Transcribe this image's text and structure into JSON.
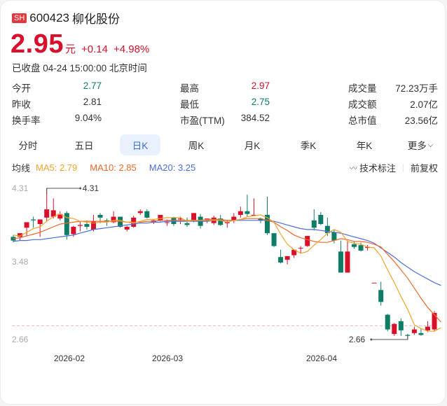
{
  "header": {
    "exchange_badge": "SH",
    "code": "600423",
    "name": "柳化股份",
    "price": "2.95",
    "unit": "元",
    "change": "+0.14",
    "change_pct": "+4.98%",
    "status": "已收盘 04-24 15:00:00 北京时间"
  },
  "stats": [
    [
      {
        "label": "今开",
        "value": "2.77",
        "color": "green"
      },
      {
        "label": "最高",
        "value": "2.97",
        "color": "red"
      },
      {
        "label": "成交量",
        "value": "72.23万手",
        "color": ""
      }
    ],
    [
      {
        "label": "昨收",
        "value": "2.81",
        "color": ""
      },
      {
        "label": "最低",
        "value": "2.75",
        "color": "green"
      },
      {
        "label": "成交额",
        "value": "2.07亿",
        "color": ""
      }
    ],
    [
      {
        "label": "换手率",
        "value": "9.04%",
        "color": ""
      },
      {
        "label": "市盈(TTM)",
        "value": "384.52",
        "color": ""
      },
      {
        "label": "总市值",
        "value": "23.56亿",
        "color": ""
      }
    ]
  ],
  "tabs": [
    {
      "label": "分时",
      "active": false
    },
    {
      "label": "五日",
      "active": false
    },
    {
      "label": "日K",
      "active": true
    },
    {
      "label": "周K",
      "active": false
    },
    {
      "label": "月K",
      "active": false
    },
    {
      "label": "季K",
      "active": false
    },
    {
      "label": "年K",
      "active": false
    },
    {
      "label": "更多",
      "active": false,
      "dropdown": true
    }
  ],
  "ma_bar": {
    "label": "均线",
    "ma5": "MA5: 2.79",
    "ma10": "MA10: 2.85",
    "ma20": "MA20: 3.25",
    "tech_label": "技术标注",
    "adjust_label": "前复权",
    "eye_icon": "eye-closed-icon"
  },
  "colors": {
    "up": "#d9102a",
    "down": "#0f7d65",
    "ma5": "#f0a52a",
    "ma10": "#ee6a2a",
    "ma20": "#4a6fd8",
    "prev_close_line": "#f0b4bf"
  },
  "chart_data": {
    "type": "candlestick",
    "title": "柳化股份 600423 日K",
    "y_ticks": [
      "4.31",
      "3.48",
      "2.66"
    ],
    "ylim": [
      2.66,
      4.31
    ],
    "x_ticks": [
      "2026-02",
      "2026-03",
      "2026-04"
    ],
    "max_annotation": "4.31",
    "min_annotation": "2.66",
    "prev_close": 2.81,
    "ma_values": {
      "MA5": 2.79,
      "MA10": 2.85,
      "MA20": 3.25
    },
    "candles": [
      {
        "o": 3.78,
        "h": 3.8,
        "l": 3.72,
        "c": 3.74
      },
      {
        "o": 3.78,
        "h": 3.82,
        "l": 3.74,
        "c": 3.82
      },
      {
        "o": 3.88,
        "h": 3.92,
        "l": 3.79,
        "c": 3.94
      },
      {
        "o": 3.97,
        "h": 4.0,
        "l": 3.88,
        "c": 3.96
      },
      {
        "o": 3.92,
        "h": 3.97,
        "l": 3.78,
        "c": 3.97
      },
      {
        "o": 3.99,
        "h": 4.31,
        "l": 3.95,
        "c": 4.08
      },
      {
        "o": 4.0,
        "h": 4.2,
        "l": 3.98,
        "c": 4.07
      },
      {
        "o": 3.98,
        "h": 4.06,
        "l": 3.96,
        "c": 4.03
      },
      {
        "o": 4.04,
        "h": 4.06,
        "l": 3.75,
        "c": 3.8
      },
      {
        "o": 3.81,
        "h": 3.9,
        "l": 3.78,
        "c": 3.89
      },
      {
        "o": 3.9,
        "h": 3.95,
        "l": 3.84,
        "c": 3.91
      },
      {
        "o": 3.92,
        "h": 3.96,
        "l": 3.86,
        "c": 3.89
      },
      {
        "o": 3.86,
        "h": 4.02,
        "l": 3.84,
        "c": 3.95
      },
      {
        "o": 4.02,
        "h": 4.04,
        "l": 3.93,
        "c": 3.99
      },
      {
        "o": 3.96,
        "h": 3.98,
        "l": 3.9,
        "c": 3.95
      },
      {
        "o": 3.94,
        "h": 4.06,
        "l": 3.93,
        "c": 4.0
      },
      {
        "o": 4.0,
        "h": 4.0,
        "l": 3.88,
        "c": 3.89
      },
      {
        "o": 3.86,
        "h": 3.9,
        "l": 3.84,
        "c": 3.89
      },
      {
        "o": 3.89,
        "h": 4.01,
        "l": 3.88,
        "c": 3.99
      },
      {
        "o": 4.04,
        "h": 4.08,
        "l": 4.02,
        "c": 4.06
      },
      {
        "o": 4.06,
        "h": 4.08,
        "l": 3.98,
        "c": 3.99
      },
      {
        "o": 3.94,
        "h": 3.97,
        "l": 3.92,
        "c": 3.96
      },
      {
        "o": 3.96,
        "h": 4.02,
        "l": 3.95,
        "c": 4.02
      },
      {
        "o": 3.94,
        "h": 3.97,
        "l": 3.9,
        "c": 3.94
      },
      {
        "o": 3.99,
        "h": 4.0,
        "l": 3.9,
        "c": 3.92
      },
      {
        "o": 3.97,
        "h": 4.0,
        "l": 3.92,
        "c": 3.98
      },
      {
        "o": 3.93,
        "h": 3.99,
        "l": 3.89,
        "c": 3.91
      },
      {
        "o": 3.96,
        "h": 4.04,
        "l": 3.94,
        "c": 4.04
      },
      {
        "o": 4.0,
        "h": 4.03,
        "l": 3.87,
        "c": 3.9
      },
      {
        "o": 3.95,
        "h": 3.98,
        "l": 3.93,
        "c": 3.98
      },
      {
        "o": 3.93,
        "h": 4.01,
        "l": 3.91,
        "c": 3.99
      },
      {
        "o": 3.98,
        "h": 4.02,
        "l": 3.9,
        "c": 3.91
      },
      {
        "o": 3.93,
        "h": 3.96,
        "l": 3.88,
        "c": 3.94
      },
      {
        "o": 3.96,
        "h": 4.04,
        "l": 3.93,
        "c": 4.0
      },
      {
        "o": 4.02,
        "h": 4.11,
        "l": 3.99,
        "c": 4.06
      },
      {
        "o": 4.06,
        "h": 4.24,
        "l": 4.0,
        "c": 4.03
      },
      {
        "o": 4.02,
        "h": 4.2,
        "l": 4.01,
        "c": 4.02
      },
      {
        "o": 3.98,
        "h": 3.99,
        "l": 3.93,
        "c": 3.96
      },
      {
        "o": 4.02,
        "h": 4.22,
        "l": 3.8,
        "c": 3.82
      },
      {
        "o": 3.82,
        "h": 3.82,
        "l": 3.67,
        "c": 3.68
      },
      {
        "o": 3.56,
        "h": 3.64,
        "l": 3.49,
        "c": 3.5
      },
      {
        "o": 3.53,
        "h": 3.56,
        "l": 3.48,
        "c": 3.57
      },
      {
        "o": 3.58,
        "h": 3.63,
        "l": 3.55,
        "c": 3.64
      },
      {
        "o": 3.66,
        "h": 3.68,
        "l": 3.6,
        "c": 3.66
      },
      {
        "o": 3.68,
        "h": 3.73,
        "l": 3.67,
        "c": 3.79
      },
      {
        "o": 3.96,
        "h": 4.08,
        "l": 3.85,
        "c": 3.88
      },
      {
        "o": 4.02,
        "h": 4.05,
        "l": 3.91,
        "c": 3.92
      },
      {
        "o": 3.9,
        "h": 3.99,
        "l": 3.79,
        "c": 3.82
      },
      {
        "o": 3.83,
        "h": 3.86,
        "l": 3.71,
        "c": 3.74
      },
      {
        "o": 3.62,
        "h": 3.74,
        "l": 3.49,
        "c": 3.39
      },
      {
        "o": 3.39,
        "h": 3.74,
        "l": 3.39,
        "c": 3.62
      },
      {
        "o": 3.7,
        "h": 3.73,
        "l": 3.65,
        "c": 3.67
      },
      {
        "o": 3.69,
        "h": 3.72,
        "l": 3.62,
        "c": 3.63
      },
      {
        "o": 3.66,
        "h": 3.69,
        "l": 3.63,
        "c": 3.67
      },
      {
        "o": 3.28,
        "h": 3.28,
        "l": 3.28,
        "c": 3.28
      },
      {
        "o": 3.2,
        "h": 3.29,
        "l": 3.03,
        "c": 3.07
      },
      {
        "o": 2.93,
        "h": 2.94,
        "l": 2.75,
        "c": 2.77
      },
      {
        "o": 2.72,
        "h": 2.84,
        "l": 2.7,
        "c": 2.83
      },
      {
        "o": 2.86,
        "h": 2.89,
        "l": 2.7,
        "c": 2.76
      },
      {
        "o": 2.71,
        "h": 2.72,
        "l": 2.66,
        "c": 2.7
      },
      {
        "o": 2.73,
        "h": 2.8,
        "l": 2.71,
        "c": 2.77
      },
      {
        "o": 2.73,
        "h": 2.78,
        "l": 2.7,
        "c": 2.71
      },
      {
        "o": 2.76,
        "h": 2.86,
        "l": 2.74,
        "c": 2.8
      },
      {
        "o": 2.77,
        "h": 2.97,
        "l": 2.75,
        "c": 2.95
      }
    ],
    "ma5_line": [
      3.8,
      3.79,
      3.83,
      3.87,
      3.89,
      3.95,
      4.0,
      4.03,
      3.99,
      3.98,
      3.95,
      3.94,
      3.93,
      3.94,
      3.94,
      3.96,
      3.96,
      3.94,
      3.93,
      3.95,
      3.97,
      3.97,
      3.98,
      3.99,
      3.99,
      3.99,
      3.95,
      3.96,
      3.96,
      3.96,
      3.96,
      3.96,
      3.94,
      3.96,
      3.97,
      4.0,
      4.01,
      4.02,
      3.99,
      3.94,
      3.81,
      3.7,
      3.64,
      3.6,
      3.62,
      3.69,
      3.75,
      3.82,
      3.86,
      3.83,
      3.73,
      3.71,
      3.7,
      3.67,
      3.66,
      3.57,
      3.42,
      3.28,
      3.13,
      2.99,
      2.82,
      2.78,
      2.75,
      2.75,
      2.79
    ],
    "ma10_line": [
      3.76,
      3.77,
      3.79,
      3.81,
      3.83,
      3.86,
      3.89,
      3.92,
      3.93,
      3.94,
      3.95,
      3.95,
      3.95,
      3.95,
      3.95,
      3.95,
      3.95,
      3.94,
      3.94,
      3.94,
      3.95,
      3.95,
      3.96,
      3.96,
      3.96,
      3.96,
      3.96,
      3.96,
      3.96,
      3.97,
      3.97,
      3.97,
      3.96,
      3.96,
      3.97,
      3.98,
      3.98,
      3.98,
      3.96,
      3.94,
      3.89,
      3.85,
      3.8,
      3.77,
      3.75,
      3.73,
      3.72,
      3.72,
      3.74,
      3.76,
      3.75,
      3.73,
      3.73,
      3.72,
      3.7,
      3.67,
      3.59,
      3.51,
      3.42,
      3.33,
      3.22,
      3.11,
      3.01,
      2.93,
      2.85
    ],
    "ma20_line": [
      3.73,
      3.74,
      3.74,
      3.75,
      3.75,
      3.76,
      3.77,
      3.78,
      3.79,
      3.8,
      3.82,
      3.84,
      3.86,
      3.87,
      3.88,
      3.89,
      3.9,
      3.91,
      3.92,
      3.93,
      3.93,
      3.94,
      3.94,
      3.95,
      3.95,
      3.95,
      3.95,
      3.95,
      3.95,
      3.95,
      3.96,
      3.96,
      3.96,
      3.96,
      3.96,
      3.96,
      3.96,
      3.96,
      3.96,
      3.95,
      3.93,
      3.91,
      3.89,
      3.87,
      3.86,
      3.86,
      3.85,
      3.84,
      3.83,
      3.82,
      3.8,
      3.78,
      3.76,
      3.74,
      3.71,
      3.66,
      3.61,
      3.56,
      3.5,
      3.45,
      3.4,
      3.36,
      3.32,
      3.28,
      3.25
    ]
  }
}
